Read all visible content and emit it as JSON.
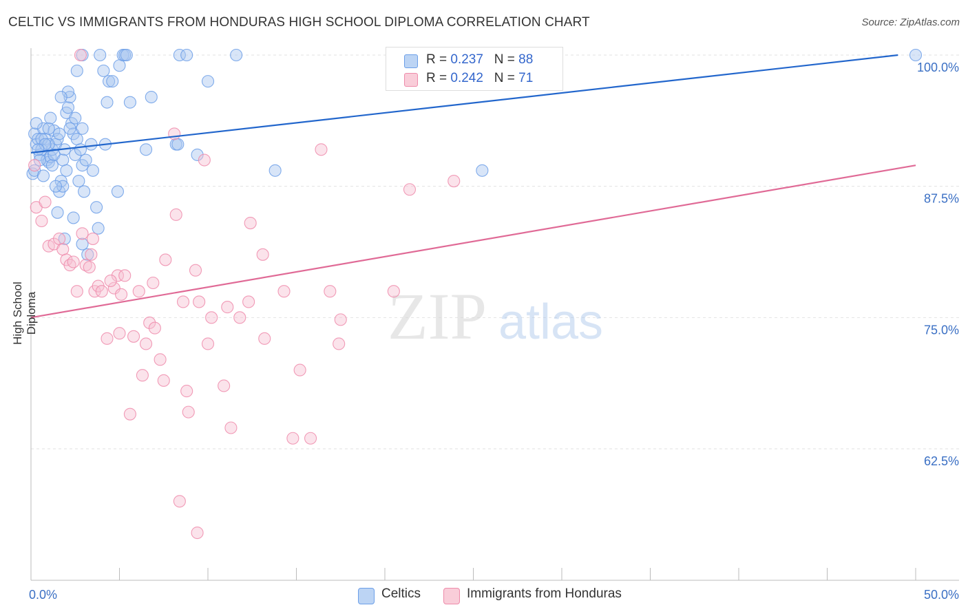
{
  "title": "CELTIC VS IMMIGRANTS FROM HONDURAS HIGH SCHOOL DIPLOMA CORRELATION CHART",
  "source": "Source: ZipAtlas.com",
  "watermark": {
    "zip": "ZIP",
    "atlas": "atlas"
  },
  "legend": {
    "rows": [
      {
        "r_label": "R = ",
        "r_value": "0.237",
        "n_label": "N = ",
        "n_value": "88"
      },
      {
        "r_label": "R = ",
        "r_value": "0.242",
        "n_label": "N = ",
        "n_value": "71"
      }
    ]
  },
  "chart_data": {
    "type": "scatter",
    "title": "CELTIC VS IMMIGRANTS FROM HONDURAS HIGH SCHOOL DIPLOMA CORRELATION CHART",
    "xlabel": "",
    "ylabel": "High School Diploma",
    "xlim": [
      0,
      50
    ],
    "ylim": [
      52,
      101
    ],
    "x_tick_labels": [
      "0.0%",
      "50.0%"
    ],
    "y_ticks": [
      62.5,
      75.0,
      87.5,
      100.0
    ],
    "y_tick_labels": [
      "62.5%",
      "75.0%",
      "87.5%",
      "100.0%"
    ],
    "grid": true,
    "legend_position": "top-center",
    "series": [
      {
        "name": "Celtics",
        "color": "#6b9ee8",
        "fill": "#a9c6f0",
        "line_color": "#2266cc",
        "R": 0.237,
        "N": 88,
        "trend": {
          "x": [
            0,
            49
          ],
          "y": [
            90.7,
            100.0
          ]
        },
        "points": [
          [
            0.1,
            88.7
          ],
          [
            0.2,
            92.5
          ],
          [
            0.3,
            91.5
          ],
          [
            0.4,
            92.0
          ],
          [
            0.5,
            90.5
          ],
          [
            0.6,
            91.0
          ],
          [
            0.7,
            93.0
          ],
          [
            0.8,
            92.0
          ],
          [
            0.9,
            90.0
          ],
          [
            1.0,
            89.8
          ],
          [
            1.1,
            90.3
          ],
          [
            1.2,
            91.0
          ],
          [
            1.3,
            92.8
          ],
          [
            1.4,
            91.5
          ],
          [
            1.5,
            92.0
          ],
          [
            1.6,
            87.0
          ],
          [
            1.7,
            88.0
          ],
          [
            1.8,
            87.5
          ],
          [
            1.9,
            91.0
          ],
          [
            2.0,
            94.5
          ],
          [
            2.1,
            95.0
          ],
          [
            2.2,
            96.0
          ],
          [
            2.3,
            93.5
          ],
          [
            2.4,
            92.5
          ],
          [
            2.5,
            90.5
          ],
          [
            2.6,
            92.0
          ],
          [
            2.7,
            88.0
          ],
          [
            2.8,
            91.0
          ],
          [
            2.9,
            89.5
          ],
          [
            3.0,
            87.0
          ],
          [
            1.2,
            89.5
          ],
          [
            1.5,
            85.0
          ],
          [
            1.9,
            82.5
          ],
          [
            2.4,
            84.5
          ],
          [
            2.9,
            82.0
          ],
          [
            3.2,
            81.0
          ],
          [
            3.7,
            85.5
          ],
          [
            3.8,
            83.5
          ],
          [
            4.2,
            91.5
          ],
          [
            4.3,
            95.5
          ],
          [
            4.4,
            97.5
          ],
          [
            4.6,
            97.5
          ],
          [
            4.9,
            87.0
          ],
          [
            5.0,
            99.0
          ],
          [
            5.2,
            100.0
          ],
          [
            5.6,
            95.5
          ],
          [
            6.5,
            91.0
          ],
          [
            6.8,
            96.0
          ],
          [
            8.2,
            91.5
          ],
          [
            8.3,
            91.5
          ],
          [
            9.4,
            90.5
          ],
          [
            10.0,
            97.5
          ],
          [
            13.8,
            89.0
          ],
          [
            25.5,
            89.0
          ],
          [
            28.0,
            99.0
          ],
          [
            50.0,
            100.0
          ],
          [
            0.3,
            93.5
          ],
          [
            0.6,
            92.0
          ],
          [
            1.0,
            91.5
          ],
          [
            1.4,
            87.5
          ],
          [
            2.1,
            96.5
          ],
          [
            2.6,
            98.5
          ],
          [
            2.9,
            93.0
          ],
          [
            3.4,
            91.5
          ],
          [
            3.5,
            89.0
          ],
          [
            4.1,
            98.5
          ],
          [
            3.9,
            100.0
          ],
          [
            5.3,
            100.0
          ],
          [
            5.4,
            100.0
          ],
          [
            8.4,
            100.0
          ],
          [
            8.8,
            100.0
          ],
          [
            11.6,
            100.0
          ],
          [
            2.9,
            100.0
          ],
          [
            0.2,
            89.0
          ],
          [
            0.5,
            90.0
          ],
          [
            0.8,
            91.5
          ],
          [
            1.0,
            93.0
          ],
          [
            1.3,
            90.5
          ],
          [
            1.6,
            92.5
          ],
          [
            1.8,
            90.0
          ],
          [
            2.0,
            89.0
          ],
          [
            2.2,
            93.0
          ],
          [
            0.4,
            91.0
          ],
          [
            0.7,
            88.5
          ],
          [
            1.1,
            94.0
          ],
          [
            1.7,
            96.0
          ],
          [
            2.5,
            94.0
          ],
          [
            3.1,
            90.0
          ]
        ]
      },
      {
        "name": "Immigrants from Honduras",
        "color": "#ee8aaa",
        "fill": "#f7c0d2",
        "line_color": "#e06a96",
        "R": 0.242,
        "N": 71,
        "trend": {
          "x": [
            0,
            50
          ],
          "y": [
            75.0,
            89.5
          ]
        },
        "points": [
          [
            0.3,
            85.5
          ],
          [
            0.6,
            84.2
          ],
          [
            0.8,
            86.0
          ],
          [
            1.0,
            81.8
          ],
          [
            1.3,
            82.0
          ],
          [
            1.6,
            82.5
          ],
          [
            1.8,
            81.5
          ],
          [
            2.0,
            80.5
          ],
          [
            2.2,
            80.0
          ],
          [
            2.4,
            80.3
          ],
          [
            2.6,
            77.5
          ],
          [
            2.9,
            83.0
          ],
          [
            3.1,
            80.0
          ],
          [
            3.3,
            79.8
          ],
          [
            3.4,
            81.0
          ],
          [
            3.6,
            77.5
          ],
          [
            3.8,
            78.0
          ],
          [
            4.0,
            77.5
          ],
          [
            4.3,
            73.0
          ],
          [
            4.7,
            77.8
          ],
          [
            4.9,
            79.0
          ],
          [
            5.1,
            77.2
          ],
          [
            5.3,
            79.0
          ],
          [
            5.6,
            65.8
          ],
          [
            5.8,
            73.2
          ],
          [
            6.1,
            77.5
          ],
          [
            6.3,
            69.5
          ],
          [
            6.5,
            72.5
          ],
          [
            6.7,
            74.5
          ],
          [
            6.9,
            78.3
          ],
          [
            7.0,
            74.0
          ],
          [
            7.3,
            71.0
          ],
          [
            7.5,
            69.0
          ],
          [
            7.6,
            80.5
          ],
          [
            8.2,
            84.8
          ],
          [
            8.4,
            57.5
          ],
          [
            8.6,
            76.5
          ],
          [
            8.8,
            68.0
          ],
          [
            8.9,
            66.0
          ],
          [
            9.3,
            79.5
          ],
          [
            9.4,
            54.5
          ],
          [
            10.0,
            72.5
          ],
          [
            10.2,
            75.0
          ],
          [
            10.9,
            68.5
          ],
          [
            11.1,
            76.0
          ],
          [
            11.3,
            64.5
          ],
          [
            11.8,
            75.0
          ],
          [
            12.3,
            76.5
          ],
          [
            12.4,
            84.0
          ],
          [
            13.1,
            81.0
          ],
          [
            13.2,
            73.0
          ],
          [
            14.3,
            77.5
          ],
          [
            14.8,
            63.5
          ],
          [
            15.2,
            70.0
          ],
          [
            15.8,
            63.5
          ],
          [
            16.4,
            91.0
          ],
          [
            16.9,
            77.5
          ],
          [
            17.4,
            72.5
          ],
          [
            17.5,
            74.8
          ],
          [
            20.5,
            77.5
          ],
          [
            21.4,
            87.2
          ],
          [
            23.9,
            88.0
          ],
          [
            27.9,
            100.0
          ],
          [
            8.1,
            92.5
          ],
          [
            9.8,
            90.0
          ],
          [
            0.2,
            89.5
          ],
          [
            3.5,
            82.5
          ],
          [
            4.5,
            78.5
          ],
          [
            5.0,
            73.5
          ],
          [
            9.5,
            76.5
          ],
          [
            2.8,
            100.0
          ]
        ]
      }
    ]
  }
}
